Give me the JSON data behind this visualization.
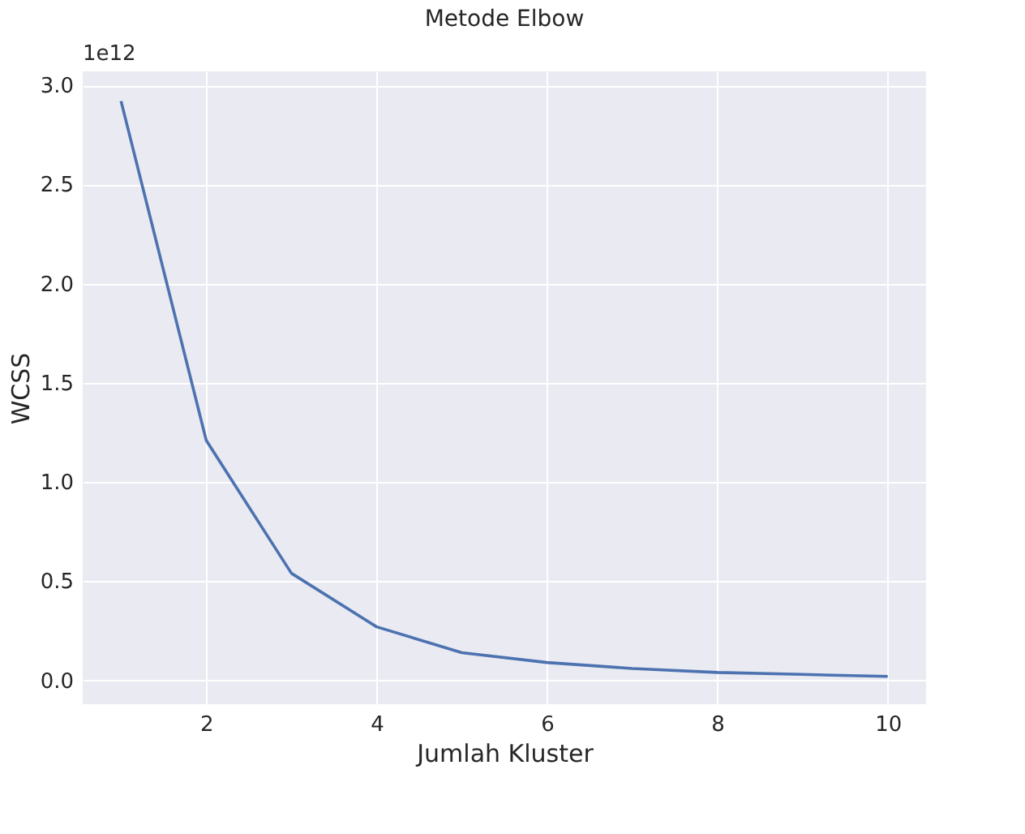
{
  "chart_data": {
    "type": "line",
    "title": "Metode Elbow",
    "xlabel": "Jumlah Kluster",
    "ylabel": "WCSS",
    "x": [
      1,
      2,
      3,
      4,
      5,
      6,
      7,
      8,
      9,
      10
    ],
    "series": [
      {
        "color": "#4c72b0",
        "values": [
          2.92,
          1.21,
          0.54,
          0.27,
          0.14,
          0.09,
          0.06,
          0.04,
          0.03,
          0.02
        ]
      }
    ],
    "xlim": [
      0.55,
      10.45
    ],
    "xticks": [
      2,
      4,
      6,
      8,
      10
    ],
    "ylim": [
      -0.12,
      3.07
    ],
    "yticks": [
      {
        "value": 0,
        "label": "0.0"
      },
      {
        "value": 0.5,
        "label": "0.5"
      },
      {
        "value": 1,
        "label": "1.0"
      },
      {
        "value": 1.5,
        "label": "1.5"
      },
      {
        "value": 2,
        "label": "2.0"
      },
      {
        "value": 2.5,
        "label": "2.5"
      },
      {
        "value": 3,
        "label": "3.0"
      }
    ],
    "annotations": [
      "1e12"
    ],
    "grid": true,
    "marker": "none",
    "line_style": "solid"
  }
}
